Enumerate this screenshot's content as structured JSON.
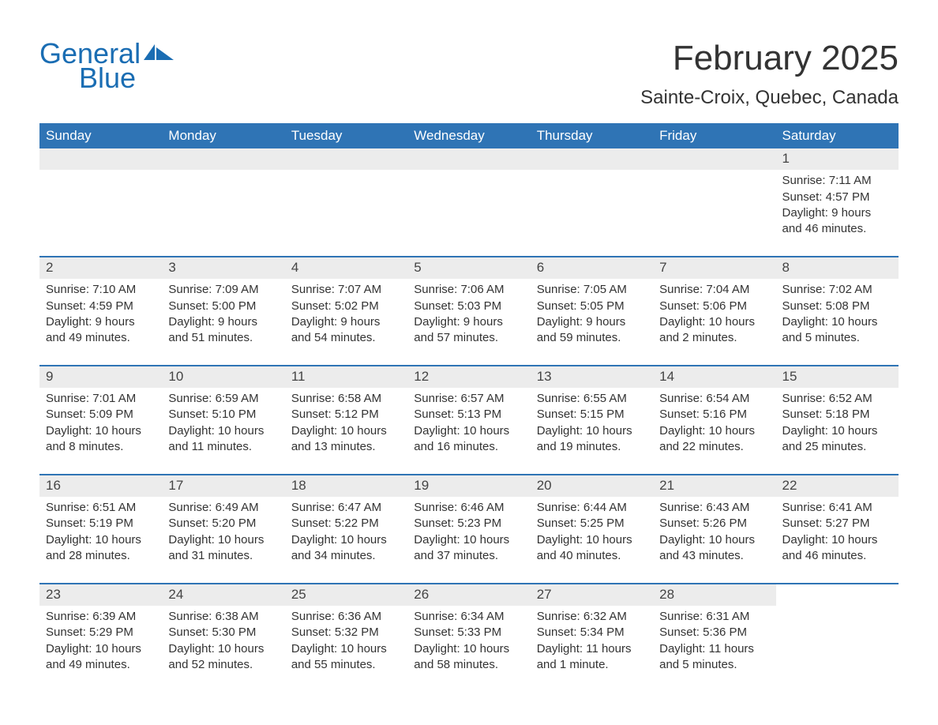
{
  "brand": {
    "word1": "General",
    "word2": "Blue",
    "logo_color": "#1a6db3"
  },
  "title": "February 2025",
  "location": "Sainte-Croix, Quebec, Canada",
  "colors": {
    "header_bg": "#2f74b5",
    "header_text": "#ffffff",
    "daynum_bg": "#ececec",
    "row_border": "#2f74b5",
    "text": "#333333",
    "background": "#ffffff"
  },
  "fonts": {
    "title_size_pt": 33,
    "location_size_pt": 18,
    "header_size_pt": 13,
    "body_size_pt": 11
  },
  "layout": {
    "columns": 7,
    "rows": 5,
    "first_day_column_index": 6
  },
  "day_headers": [
    "Sunday",
    "Monday",
    "Tuesday",
    "Wednesday",
    "Thursday",
    "Friday",
    "Saturday"
  ],
  "labels": {
    "sunrise": "Sunrise: ",
    "sunset": "Sunset: ",
    "daylight": "Daylight: "
  },
  "weeks": [
    [
      null,
      null,
      null,
      null,
      null,
      null,
      {
        "n": "1",
        "sunrise": "7:11 AM",
        "sunset": "4:57 PM",
        "daylight": "9 hours and 46 minutes."
      }
    ],
    [
      {
        "n": "2",
        "sunrise": "7:10 AM",
        "sunset": "4:59 PM",
        "daylight": "9 hours and 49 minutes."
      },
      {
        "n": "3",
        "sunrise": "7:09 AM",
        "sunset": "5:00 PM",
        "daylight": "9 hours and 51 minutes."
      },
      {
        "n": "4",
        "sunrise": "7:07 AM",
        "sunset": "5:02 PM",
        "daylight": "9 hours and 54 minutes."
      },
      {
        "n": "5",
        "sunrise": "7:06 AM",
        "sunset": "5:03 PM",
        "daylight": "9 hours and 57 minutes."
      },
      {
        "n": "6",
        "sunrise": "7:05 AM",
        "sunset": "5:05 PM",
        "daylight": "9 hours and 59 minutes."
      },
      {
        "n": "7",
        "sunrise": "7:04 AM",
        "sunset": "5:06 PM",
        "daylight": "10 hours and 2 minutes."
      },
      {
        "n": "8",
        "sunrise": "7:02 AM",
        "sunset": "5:08 PM",
        "daylight": "10 hours and 5 minutes."
      }
    ],
    [
      {
        "n": "9",
        "sunrise": "7:01 AM",
        "sunset": "5:09 PM",
        "daylight": "10 hours and 8 minutes."
      },
      {
        "n": "10",
        "sunrise": "6:59 AM",
        "sunset": "5:10 PM",
        "daylight": "10 hours and 11 minutes."
      },
      {
        "n": "11",
        "sunrise": "6:58 AM",
        "sunset": "5:12 PM",
        "daylight": "10 hours and 13 minutes."
      },
      {
        "n": "12",
        "sunrise": "6:57 AM",
        "sunset": "5:13 PM",
        "daylight": "10 hours and 16 minutes."
      },
      {
        "n": "13",
        "sunrise": "6:55 AM",
        "sunset": "5:15 PM",
        "daylight": "10 hours and 19 minutes."
      },
      {
        "n": "14",
        "sunrise": "6:54 AM",
        "sunset": "5:16 PM",
        "daylight": "10 hours and 22 minutes."
      },
      {
        "n": "15",
        "sunrise": "6:52 AM",
        "sunset": "5:18 PM",
        "daylight": "10 hours and 25 minutes."
      }
    ],
    [
      {
        "n": "16",
        "sunrise": "6:51 AM",
        "sunset": "5:19 PM",
        "daylight": "10 hours and 28 minutes."
      },
      {
        "n": "17",
        "sunrise": "6:49 AM",
        "sunset": "5:20 PM",
        "daylight": "10 hours and 31 minutes."
      },
      {
        "n": "18",
        "sunrise": "6:47 AM",
        "sunset": "5:22 PM",
        "daylight": "10 hours and 34 minutes."
      },
      {
        "n": "19",
        "sunrise": "6:46 AM",
        "sunset": "5:23 PM",
        "daylight": "10 hours and 37 minutes."
      },
      {
        "n": "20",
        "sunrise": "6:44 AM",
        "sunset": "5:25 PM",
        "daylight": "10 hours and 40 minutes."
      },
      {
        "n": "21",
        "sunrise": "6:43 AM",
        "sunset": "5:26 PM",
        "daylight": "10 hours and 43 minutes."
      },
      {
        "n": "22",
        "sunrise": "6:41 AM",
        "sunset": "5:27 PM",
        "daylight": "10 hours and 46 minutes."
      }
    ],
    [
      {
        "n": "23",
        "sunrise": "6:39 AM",
        "sunset": "5:29 PM",
        "daylight": "10 hours and 49 minutes."
      },
      {
        "n": "24",
        "sunrise": "6:38 AM",
        "sunset": "5:30 PM",
        "daylight": "10 hours and 52 minutes."
      },
      {
        "n": "25",
        "sunrise": "6:36 AM",
        "sunset": "5:32 PM",
        "daylight": "10 hours and 55 minutes."
      },
      {
        "n": "26",
        "sunrise": "6:34 AM",
        "sunset": "5:33 PM",
        "daylight": "10 hours and 58 minutes."
      },
      {
        "n": "27",
        "sunrise": "6:32 AM",
        "sunset": "5:34 PM",
        "daylight": "11 hours and 1 minute."
      },
      {
        "n": "28",
        "sunrise": "6:31 AM",
        "sunset": "5:36 PM",
        "daylight": "11 hours and 5 minutes."
      },
      null
    ]
  ]
}
